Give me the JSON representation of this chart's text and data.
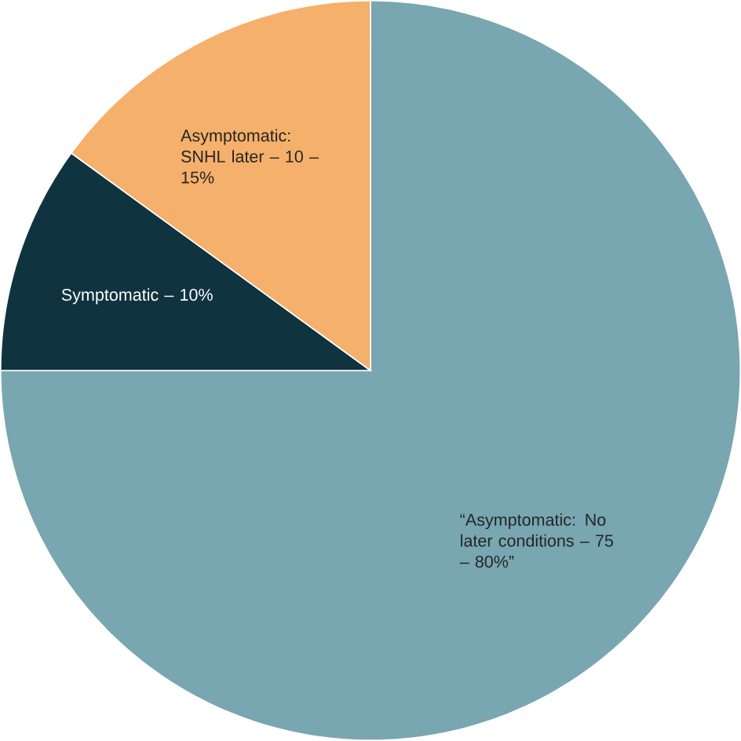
{
  "chart_data": {
    "type": "pie",
    "categories": [
      "“Asymptomatic: No later conditions – 75 – 80%”",
      "Symptomatic – 10%",
      "Asymptomatic: SNHL later – 10 – 15%"
    ],
    "values": [
      75,
      10,
      15
    ],
    "colors": [
      "#78a6b1",
      "#0f3440",
      "#f5b06b"
    ]
  }
}
